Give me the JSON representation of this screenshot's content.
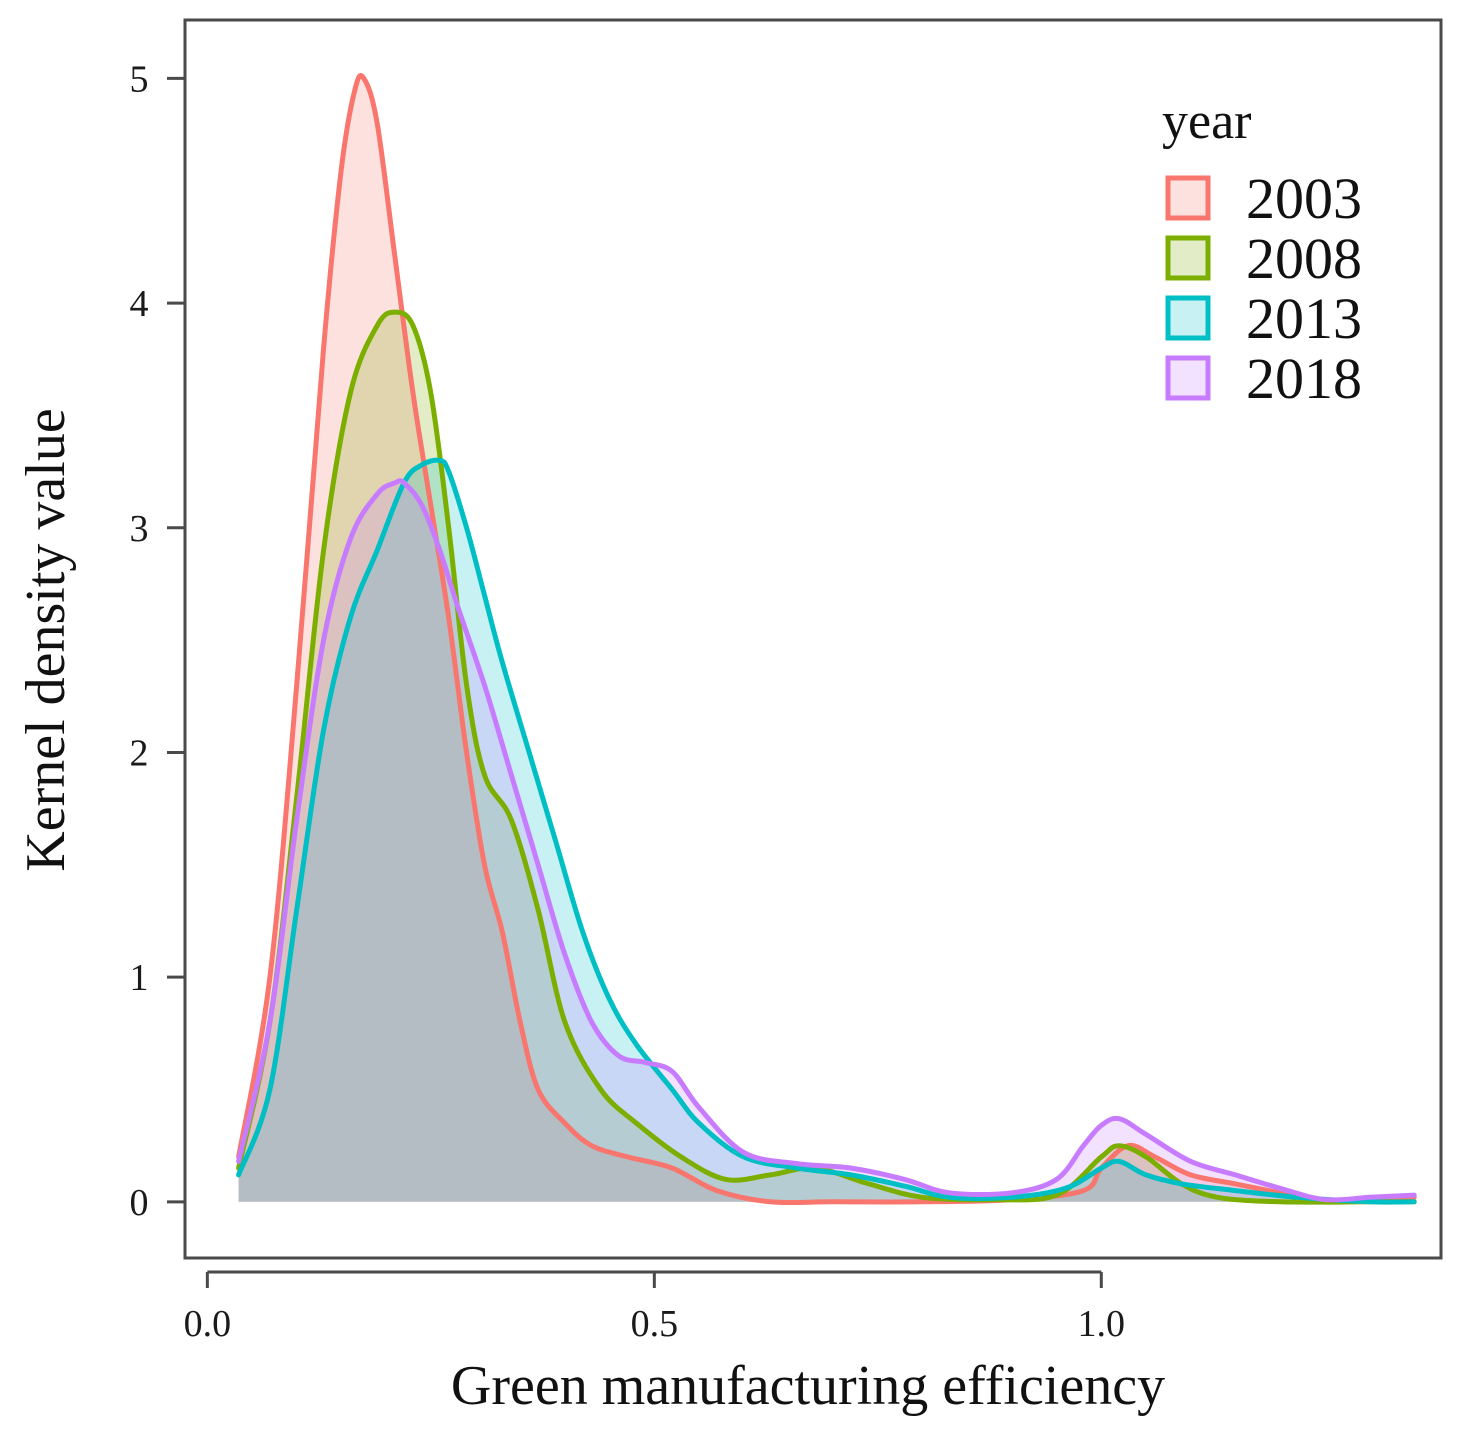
{
  "chart_data": {
    "type": "area",
    "title": "",
    "xlabel": "Green manufacturing efficiency",
    "ylabel": "Kernel density value",
    "xlim": [
      -0.025,
      1.38
    ],
    "ylim": [
      -0.25,
      5.26
    ],
    "x_ticks": [
      {
        "value": 0.0,
        "label": "0.0"
      },
      {
        "value": 0.5,
        "label": "0.5"
      },
      {
        "value": 1.0,
        "label": "1.0"
      }
    ],
    "y_ticks": [
      {
        "value": 0,
        "label": "0"
      },
      {
        "value": 1,
        "label": "1"
      },
      {
        "value": 2,
        "label": "2"
      },
      {
        "value": 3,
        "label": "3"
      },
      {
        "value": 4,
        "label": "4"
      },
      {
        "value": 5,
        "label": "5"
      }
    ],
    "legend": {
      "title": "year",
      "position": "top-right"
    },
    "series": [
      {
        "name": "2003",
        "color": "#F8766D",
        "x": [
          0.035,
          0.07,
          0.1,
          0.13,
          0.15,
          0.165,
          0.175,
          0.19,
          0.21,
          0.23,
          0.25,
          0.27,
          0.29,
          0.31,
          0.33,
          0.35,
          0.37,
          0.4,
          0.43,
          0.47,
          0.52,
          0.57,
          0.63,
          0.7,
          0.8,
          0.9,
          0.98,
          1.0,
          1.03,
          1.06,
          1.1,
          1.15,
          1.2,
          1.24,
          1.3,
          1.35
        ],
        "y": [
          0.2,
          1.0,
          2.3,
          3.8,
          4.6,
          4.95,
          5.0,
          4.8,
          4.2,
          3.6,
          3.1,
          2.6,
          2.0,
          1.5,
          1.2,
          0.8,
          0.5,
          0.35,
          0.25,
          0.2,
          0.15,
          0.05,
          0.0,
          0.0,
          0.0,
          0.01,
          0.05,
          0.15,
          0.25,
          0.2,
          0.12,
          0.08,
          0.04,
          0.01,
          0.01,
          0.02
        ]
      },
      {
        "name": "2008",
        "color": "#7CAE00",
        "x": [
          0.035,
          0.07,
          0.1,
          0.13,
          0.16,
          0.19,
          0.21,
          0.23,
          0.25,
          0.27,
          0.29,
          0.31,
          0.34,
          0.37,
          0.4,
          0.44,
          0.48,
          0.53,
          0.58,
          0.63,
          0.68,
          0.74,
          0.8,
          0.88,
          0.95,
          1.0,
          1.02,
          1.05,
          1.09,
          1.13,
          1.2,
          1.3,
          1.35
        ],
        "y": [
          0.15,
          0.8,
          1.8,
          2.9,
          3.6,
          3.9,
          3.96,
          3.9,
          3.6,
          3.0,
          2.3,
          1.9,
          1.7,
          1.3,
          0.8,
          0.5,
          0.35,
          0.2,
          0.1,
          0.12,
          0.15,
          0.08,
          0.02,
          0.01,
          0.03,
          0.2,
          0.25,
          0.2,
          0.08,
          0.02,
          0.0,
          0.0,
          0.0
        ]
      },
      {
        "name": "2013",
        "color": "#00BFC4",
        "x": [
          0.035,
          0.07,
          0.1,
          0.13,
          0.16,
          0.19,
          0.22,
          0.24,
          0.26,
          0.27,
          0.29,
          0.31,
          0.33,
          0.36,
          0.39,
          0.42,
          0.45,
          0.48,
          0.52,
          0.55,
          0.6,
          0.66,
          0.72,
          0.78,
          0.83,
          0.9,
          0.96,
          1.0,
          1.02,
          1.05,
          1.09,
          1.15,
          1.22,
          1.3,
          1.35
        ],
        "y": [
          0.12,
          0.5,
          1.3,
          2.1,
          2.6,
          2.9,
          3.2,
          3.28,
          3.3,
          3.25,
          3.0,
          2.7,
          2.4,
          2.0,
          1.6,
          1.2,
          0.9,
          0.7,
          0.5,
          0.35,
          0.2,
          0.15,
          0.12,
          0.07,
          0.02,
          0.02,
          0.06,
          0.15,
          0.18,
          0.12,
          0.08,
          0.05,
          0.02,
          0.0,
          0.0
        ]
      },
      {
        "name": "2018",
        "color": "#C77CFF",
        "x": [
          0.035,
          0.07,
          0.1,
          0.13,
          0.16,
          0.19,
          0.21,
          0.22,
          0.24,
          0.26,
          0.28,
          0.31,
          0.34,
          0.37,
          0.4,
          0.43,
          0.46,
          0.49,
          0.52,
          0.55,
          0.6,
          0.66,
          0.72,
          0.78,
          0.83,
          0.9,
          0.95,
          0.98,
          1.0,
          1.02,
          1.05,
          1.1,
          1.15,
          1.2,
          1.25,
          1.3,
          1.35
        ],
        "y": [
          0.18,
          0.8,
          1.7,
          2.5,
          2.95,
          3.15,
          3.2,
          3.2,
          3.1,
          2.9,
          2.65,
          2.3,
          1.9,
          1.5,
          1.1,
          0.8,
          0.65,
          0.62,
          0.58,
          0.42,
          0.22,
          0.17,
          0.15,
          0.1,
          0.04,
          0.04,
          0.1,
          0.25,
          0.34,
          0.37,
          0.3,
          0.18,
          0.12,
          0.06,
          0.01,
          0.02,
          0.03
        ]
      }
    ]
  }
}
